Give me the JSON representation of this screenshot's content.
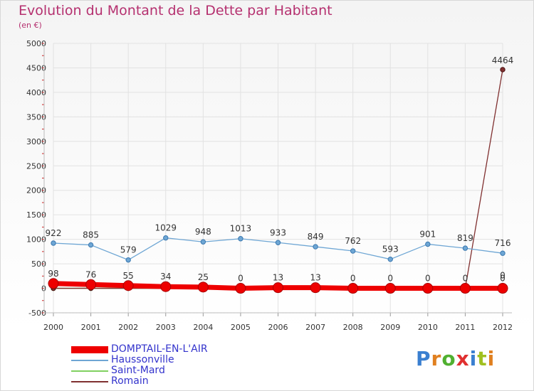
{
  "title": "Evolution du Montant de la Dette par Habitant",
  "subtitle": "(en €)",
  "brand": {
    "text": "Proxiti",
    "colors": [
      "#3a7fd0",
      "#e08020",
      "#50b030",
      "#e03030",
      "#3a7fd0",
      "#a0c020",
      "#e08020"
    ]
  },
  "chart_data": {
    "type": "line",
    "x": [
      "2000",
      "2001",
      "2002",
      "2003",
      "2004",
      "2005",
      "2006",
      "2007",
      "2008",
      "2009",
      "2010",
      "2011",
      "2012"
    ],
    "ylim": [
      -500,
      5000
    ],
    "yticks": [
      -500,
      0,
      500,
      1000,
      1500,
      2000,
      2500,
      3000,
      3500,
      4000,
      4500,
      5000
    ],
    "series": [
      {
        "name": "DOMPTAIL-EN-L'AIR",
        "color": "#ee0000",
        "values": [
          98,
          76,
          55,
          34,
          25,
          0,
          13,
          13,
          0,
          0,
          0,
          0,
          0
        ],
        "labels": [
          "98",
          "76",
          "55",
          "34",
          "25",
          "0",
          "13",
          "13",
          "0",
          "0",
          "0",
          "0",
          "0"
        ]
      },
      {
        "name": "Haussonville",
        "color": "#6ea6d4",
        "values": [
          922,
          885,
          579,
          1029,
          948,
          1013,
          933,
          849,
          762,
          593,
          901,
          819,
          716
        ],
        "labels": [
          "922",
          "885",
          "579",
          "1029",
          "948",
          "1013",
          "933",
          "849",
          "762",
          "593",
          "901",
          "819",
          "716"
        ]
      },
      {
        "name": "Saint-Mard",
        "color": "#80d060",
        "values": [
          0,
          0,
          0,
          0,
          0,
          0,
          0,
          0,
          0,
          0,
          0,
          0,
          0
        ],
        "labels": [
          "0",
          "0",
          "0",
          "0",
          "0",
          "0",
          "0",
          "0",
          "0",
          "0",
          "0",
          "0",
          "0"
        ]
      },
      {
        "name": "Romain",
        "color": "#803030",
        "values": [
          0,
          0,
          0,
          0,
          0,
          0,
          0,
          0,
          0,
          0,
          0,
          0,
          4464
        ],
        "labels": [
          "0",
          "0",
          "0",
          "0",
          "0",
          "0",
          "0",
          "0",
          "0",
          "0",
          "0",
          "0",
          "4464"
        ]
      }
    ]
  }
}
